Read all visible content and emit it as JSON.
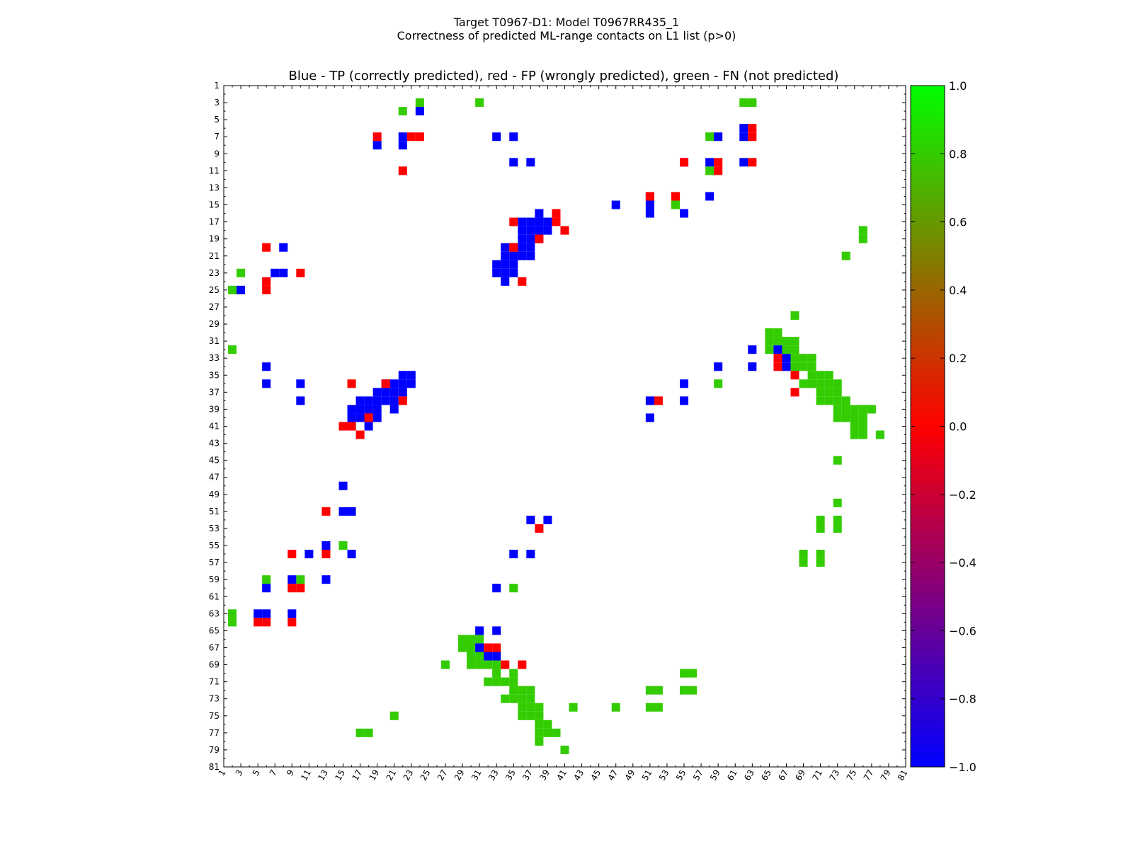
{
  "figure": {
    "title_line1": "Target T0967-D1: Model T0967RR435_1",
    "title_line2": "Correctness of predicted ML-range contacts on L1 list (p>0)"
  },
  "chart_data": {
    "type": "heatmap",
    "title": "Blue - TP (correctly predicted), red - FP (wrongly predicted), green - FN (not predicted)",
    "xlabel": "",
    "ylabel": "",
    "xlim": [
      1,
      81
    ],
    "ylim": [
      1,
      81
    ],
    "tick_labels": [
      "1",
      "3",
      "5",
      "7",
      "9",
      "11",
      "13",
      "15",
      "17",
      "19",
      "21",
      "23",
      "25",
      "27",
      "29",
      "31",
      "33",
      "35",
      "37",
      "39",
      "41",
      "43",
      "45",
      "47",
      "49",
      "51",
      "53",
      "55",
      "57",
      "59",
      "61",
      "63",
      "65",
      "67",
      "69",
      "71",
      "73",
      "75",
      "77",
      "79",
      "81"
    ],
    "colorbar": {
      "ticks": [
        1.0,
        0.8,
        0.6,
        0.4,
        0.2,
        0.0,
        -0.2,
        -0.4,
        -0.6,
        -0.8,
        -1.0
      ],
      "tick_labels": [
        "1.0",
        "0.8",
        "0.6",
        "0.4",
        "0.2",
        "0.0",
        "−0.2",
        "−0.4",
        "−0.6",
        "−0.8",
        "−1.0"
      ],
      "range": [
        -1.0,
        1.0
      ],
      "gradient": [
        "#0000ff",
        "#ff0000",
        "#00ff00"
      ]
    },
    "colors": {
      "TP": "#0000ff",
      "FP": "#ff0000",
      "FN": "#33cc00"
    },
    "cells": {
      "TP": [
        [
          24,
          4
        ],
        [
          22,
          7
        ],
        [
          22,
          8
        ],
        [
          19,
          8
        ],
        [
          33,
          7
        ],
        [
          35,
          7
        ],
        [
          35,
          10
        ],
        [
          37,
          10
        ],
        [
          51,
          14
        ],
        [
          54,
          14
        ],
        [
          58,
          14
        ],
        [
          47,
          15
        ],
        [
          51,
          15
        ],
        [
          51,
          16
        ],
        [
          55,
          16
        ],
        [
          38,
          16
        ],
        [
          39,
          17
        ],
        [
          38,
          17
        ],
        [
          37,
          17
        ],
        [
          36,
          17
        ],
        [
          38,
          18
        ],
        [
          37,
          18
        ],
        [
          36,
          18
        ],
        [
          39,
          18
        ],
        [
          38,
          19
        ],
        [
          37,
          19
        ],
        [
          36,
          19
        ],
        [
          37,
          20
        ],
        [
          36,
          20
        ],
        [
          35,
          20
        ],
        [
          34,
          20
        ],
        [
          37,
          21
        ],
        [
          36,
          21
        ],
        [
          35,
          21
        ],
        [
          34,
          21
        ],
        [
          33,
          22
        ],
        [
          34,
          22
        ],
        [
          35,
          22
        ],
        [
          33,
          23
        ],
        [
          34,
          23
        ],
        [
          35,
          23
        ],
        [
          34,
          24
        ],
        [
          62,
          6
        ],
        [
          62,
          7
        ],
        [
          59,
          7
        ],
        [
          62,
          10
        ],
        [
          55,
          10
        ],
        [
          58,
          10
        ],
        [
          3,
          25
        ],
        [
          7,
          23
        ],
        [
          8,
          23
        ],
        [
          8,
          20
        ],
        [
          6,
          34
        ],
        [
          6,
          36
        ],
        [
          10,
          36
        ],
        [
          10,
          38
        ],
        [
          20,
          36
        ],
        [
          20,
          37
        ],
        [
          21,
          37
        ],
        [
          22,
          37
        ],
        [
          23,
          35
        ],
        [
          22,
          35
        ],
        [
          23,
          36
        ],
        [
          21,
          36
        ],
        [
          22,
          36
        ],
        [
          19,
          37
        ],
        [
          18,
          38
        ],
        [
          17,
          38
        ],
        [
          16,
          39
        ],
        [
          17,
          39
        ],
        [
          18,
          39
        ],
        [
          19,
          39
        ],
        [
          21,
          38
        ],
        [
          21,
          39
        ],
        [
          19,
          38
        ],
        [
          20,
          38
        ],
        [
          16,
          40
        ],
        [
          17,
          40
        ],
        [
          15,
          41
        ],
        [
          16,
          41
        ],
        [
          18,
          40
        ],
        [
          19,
          40
        ],
        [
          18,
          41
        ],
        [
          15,
          48
        ],
        [
          15,
          51
        ],
        [
          16,
          51
        ],
        [
          16,
          56
        ],
        [
          13,
          55
        ],
        [
          11,
          56
        ],
        [
          9,
          59
        ],
        [
          6,
          60
        ],
        [
          5,
          63
        ],
        [
          6,
          63
        ],
        [
          9,
          63
        ],
        [
          13,
          59
        ],
        [
          37,
          52
        ],
        [
          39,
          52
        ],
        [
          35,
          56
        ],
        [
          37,
          56
        ],
        [
          33,
          60
        ],
        [
          31,
          65
        ],
        [
          33,
          65
        ],
        [
          31,
          67
        ],
        [
          32,
          68
        ],
        [
          33,
          68
        ],
        [
          63,
          32
        ],
        [
          66,
          32
        ],
        [
          67,
          33
        ],
        [
          67,
          34
        ],
        [
          59,
          34
        ],
        [
          63,
          34
        ],
        [
          55,
          36
        ],
        [
          51,
          38
        ],
        [
          55,
          38
        ],
        [
          51,
          40
        ]
      ],
      "FP": [
        [
          19,
          7
        ],
        [
          23,
          7
        ],
        [
          24,
          7
        ],
        [
          22,
          11
        ],
        [
          35,
          17
        ],
        [
          40,
          16
        ],
        [
          40,
          17
        ],
        [
          41,
          18
        ],
        [
          38,
          19
        ],
        [
          35,
          20
        ],
        [
          36,
          24
        ],
        [
          51,
          14
        ],
        [
          55,
          10
        ],
        [
          59,
          10
        ],
        [
          59,
          11
        ],
        [
          63,
          6
        ],
        [
          63,
          7
        ],
        [
          63,
          10
        ],
        [
          54,
          14
        ],
        [
          6,
          20
        ],
        [
          6,
          24
        ],
        [
          6,
          25
        ],
        [
          10,
          23
        ],
        [
          16,
          36
        ],
        [
          20,
          36
        ],
        [
          22,
          38
        ],
        [
          18,
          40
        ],
        [
          15,
          41
        ],
        [
          16,
          41
        ],
        [
          17,
          42
        ],
        [
          13,
          51
        ],
        [
          38,
          53
        ],
        [
          9,
          56
        ],
        [
          13,
          56
        ],
        [
          9,
          60
        ],
        [
          10,
          60
        ],
        [
          5,
          64
        ],
        [
          6,
          64
        ],
        [
          9,
          64
        ],
        [
          32,
          67
        ],
        [
          33,
          67
        ],
        [
          34,
          69
        ],
        [
          36,
          69
        ],
        [
          52,
          38
        ],
        [
          66,
          33
        ],
        [
          66,
          34
        ],
        [
          68,
          35
        ],
        [
          68,
          37
        ]
      ],
      "FN": [
        [
          24,
          3
        ],
        [
          22,
          4
        ],
        [
          31,
          3
        ],
        [
          62,
          3
        ],
        [
          63,
          3
        ],
        [
          58,
          7
        ],
        [
          58,
          11
        ],
        [
          54,
          15
        ],
        [
          76,
          18
        ],
        [
          76,
          19
        ],
        [
          74,
          21
        ],
        [
          3,
          23
        ],
        [
          2,
          25
        ],
        [
          68,
          28
        ],
        [
          2,
          32
        ],
        [
          65,
          30
        ],
        [
          66,
          30
        ],
        [
          65,
          31
        ],
        [
          66,
          31
        ],
        [
          67,
          31
        ],
        [
          68,
          31
        ],
        [
          65,
          32
        ],
        [
          67,
          32
        ],
        [
          68,
          32
        ],
        [
          68,
          33
        ],
        [
          69,
          33
        ],
        [
          70,
          33
        ],
        [
          68,
          34
        ],
        [
          69,
          34
        ],
        [
          70,
          34
        ],
        [
          70,
          35
        ],
        [
          71,
          35
        ],
        [
          72,
          35
        ],
        [
          69,
          36
        ],
        [
          70,
          36
        ],
        [
          71,
          36
        ],
        [
          72,
          36
        ],
        [
          73,
          36
        ],
        [
          71,
          37
        ],
        [
          72,
          37
        ],
        [
          73,
          37
        ],
        [
          71,
          38
        ],
        [
          72,
          38
        ],
        [
          73,
          38
        ],
        [
          74,
          38
        ],
        [
          73,
          39
        ],
        [
          74,
          39
        ],
        [
          75,
          39
        ],
        [
          76,
          39
        ],
        [
          77,
          39
        ],
        [
          73,
          40
        ],
        [
          74,
          40
        ],
        [
          75,
          40
        ],
        [
          76,
          40
        ],
        [
          75,
          41
        ],
        [
          76,
          41
        ],
        [
          75,
          42
        ],
        [
          76,
          42
        ],
        [
          78,
          42
        ],
        [
          73,
          45
        ],
        [
          73,
          50
        ],
        [
          71,
          52
        ],
        [
          71,
          53
        ],
        [
          73,
          52
        ],
        [
          73,
          53
        ],
        [
          69,
          56
        ],
        [
          69,
          57
        ],
        [
          71,
          56
        ],
        [
          71,
          57
        ],
        [
          59,
          36
        ],
        [
          15,
          55
        ],
        [
          6,
          59
        ],
        [
          10,
          59
        ],
        [
          35,
          60
        ],
        [
          2,
          63
        ],
        [
          2,
          64
        ],
        [
          29,
          66
        ],
        [
          30,
          66
        ],
        [
          31,
          66
        ],
        [
          29,
          67
        ],
        [
          30,
          67
        ],
        [
          30,
          68
        ],
        [
          31,
          68
        ],
        [
          30,
          69
        ],
        [
          31,
          69
        ],
        [
          32,
          69
        ],
        [
          33,
          69
        ],
        [
          27,
          69
        ],
        [
          33,
          70
        ],
        [
          35,
          70
        ],
        [
          55,
          70
        ],
        [
          56,
          70
        ],
        [
          32,
          71
        ],
        [
          33,
          71
        ],
        [
          34,
          71
        ],
        [
          35,
          71
        ],
        [
          35,
          72
        ],
        [
          36,
          72
        ],
        [
          37,
          72
        ],
        [
          51,
          72
        ],
        [
          52,
          72
        ],
        [
          55,
          72
        ],
        [
          56,
          72
        ],
        [
          34,
          73
        ],
        [
          35,
          73
        ],
        [
          36,
          73
        ],
        [
          37,
          73
        ],
        [
          36,
          74
        ],
        [
          37,
          74
        ],
        [
          38,
          74
        ],
        [
          42,
          74
        ],
        [
          47,
          74
        ],
        [
          51,
          74
        ],
        [
          52,
          74
        ],
        [
          36,
          75
        ],
        [
          37,
          75
        ],
        [
          38,
          75
        ],
        [
          21,
          75
        ],
        [
          38,
          76
        ],
        [
          39,
          76
        ],
        [
          38,
          77
        ],
        [
          39,
          77
        ],
        [
          40,
          77
        ],
        [
          18,
          77
        ],
        [
          17,
          77
        ],
        [
          38,
          78
        ],
        [
          41,
          79
        ]
      ]
    }
  }
}
